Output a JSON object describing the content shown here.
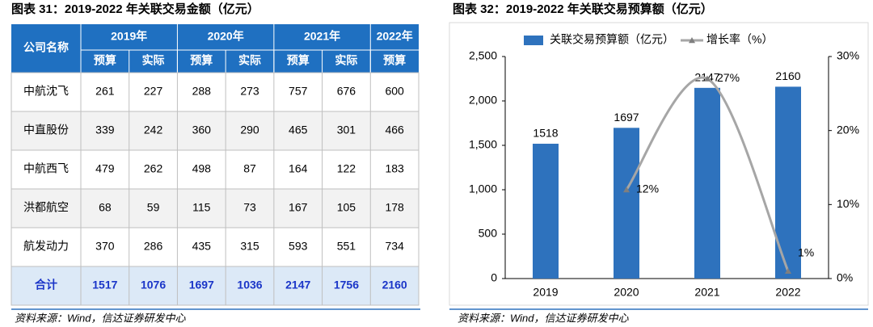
{
  "table": {
    "title": "图表 31：2019-2022 年关联交易金额（亿元）",
    "header_top": [
      "公司名称",
      "2019年",
      "2020年",
      "2021年",
      "2022年"
    ],
    "header_sub": [
      "预算",
      "实际",
      "预算",
      "实际",
      "预算",
      "实际",
      "预算"
    ],
    "rows": [
      [
        "中航沈飞",
        261,
        227,
        288,
        273,
        757,
        676,
        600
      ],
      [
        "中直股份",
        339,
        242,
        360,
        290,
        465,
        301,
        466
      ],
      [
        "中航西飞",
        479,
        262,
        498,
        87,
        164,
        122,
        183
      ],
      [
        "洪都航空",
        68,
        59,
        115,
        73,
        167,
        105,
        178
      ],
      [
        "航发动力",
        370,
        286,
        435,
        315,
        593,
        551,
        734
      ],
      [
        "合计",
        1517,
        1076,
        1697,
        1036,
        2147,
        1756,
        2160
      ]
    ],
    "source": "资料来源：Wind，信达证券研发中心"
  },
  "chart_data": {
    "type": "bar",
    "title": "图表 32：2019-2022 年关联交易预算额（亿元）",
    "categories": [
      "2019",
      "2020",
      "2021",
      "2022"
    ],
    "series": [
      {
        "name": "关联交易预算额（亿元）",
        "color": "#2e72bd",
        "values": [
          1518,
          1697,
          2147,
          2160
        ]
      },
      {
        "name": "增长率（%）",
        "color": "#a6a6a6",
        "axis": "y2",
        "type": "line",
        "values": [
          null,
          12,
          27,
          1
        ],
        "value_labels": [
          null,
          "12%",
          "27%",
          "1%"
        ]
      }
    ],
    "ylim": [
      0,
      2500
    ],
    "yticks": [
      0,
      500,
      {
        "value": 1000,
        "label": "1,000"
      },
      {
        "value": 1500,
        "label": "1,500"
      },
      {
        "value": 2000,
        "label": "2,000"
      },
      {
        "value": 2500,
        "label": "2,500"
      }
    ],
    "y2lim": [
      0,
      30
    ],
    "y2ticks": [
      {
        "value": 0,
        "label": "0%"
      },
      {
        "value": 10,
        "label": "10%"
      },
      {
        "value": 20,
        "label": "20%"
      },
      {
        "value": 30,
        "label": "30%"
      }
    ],
    "source": "资料来源：Wind，信达证券研发中心"
  }
}
